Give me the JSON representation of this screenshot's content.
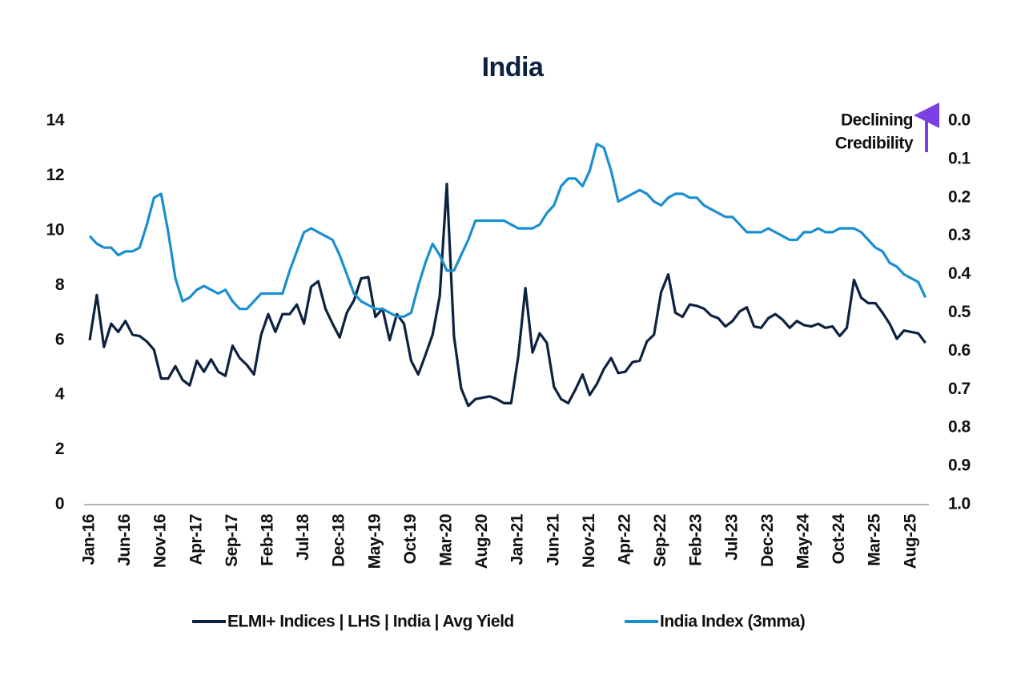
{
  "chart_data": {
    "type": "line",
    "title": "India",
    "annotation": [
      "Declining",
      "Credibility"
    ],
    "categories": [
      "Jan-16",
      null,
      null,
      null,
      null,
      "Jun-16",
      null,
      null,
      null,
      null,
      "Nov-16",
      null,
      null,
      null,
      null,
      "Apr-17",
      null,
      null,
      null,
      null,
      "Sep-17",
      null,
      null,
      null,
      null,
      "Feb-18",
      null,
      null,
      null,
      null,
      "Jul-18",
      null,
      null,
      null,
      null,
      "Dec-18",
      null,
      null,
      null,
      null,
      "May-19",
      null,
      null,
      null,
      null,
      "Oct-19",
      null,
      null,
      null,
      null,
      "Mar-20",
      null,
      null,
      null,
      null,
      "Aug-20",
      null,
      null,
      null,
      null,
      "Jan-21",
      null,
      null,
      null,
      null,
      "Jun-21",
      null,
      null,
      null,
      null,
      "Nov-21",
      null,
      null,
      null,
      null,
      "Apr-22",
      null,
      null,
      null,
      null,
      "Sep-22",
      null,
      null,
      null,
      null,
      "Feb-23",
      null,
      null,
      null,
      null,
      "Jul-23",
      null,
      null,
      null,
      null,
      "Dec-23",
      null,
      null,
      null,
      null,
      "May-24",
      null,
      null,
      null,
      null,
      "Oct-24",
      null,
      null,
      null,
      null,
      "Mar-25",
      null,
      null,
      null,
      null,
      "Aug-25",
      null,
      null
    ],
    "series": [
      {
        "name": "ELMI+ Indices | LHS | India | Avg Yield",
        "color": "#0d2240",
        "axis": "y",
        "values": [
          6.0,
          7.65,
          5.75,
          6.6,
          6.3,
          6.7,
          6.2,
          6.15,
          5.95,
          5.65,
          4.6,
          4.6,
          5.05,
          4.55,
          4.35,
          5.25,
          4.85,
          5.3,
          4.85,
          4.7,
          5.8,
          5.35,
          5.1,
          4.75,
          6.2,
          6.95,
          6.3,
          6.95,
          6.95,
          7.3,
          6.6,
          7.95,
          8.15,
          7.15,
          6.6,
          6.1,
          7.0,
          7.45,
          8.25,
          8.3,
          6.85,
          7.15,
          6.0,
          6.95,
          6.6,
          5.25,
          4.75,
          5.45,
          6.2,
          7.6,
          11.7,
          6.15,
          4.25,
          3.6,
          3.85,
          3.9,
          3.95,
          3.85,
          3.7,
          3.7,
          5.4,
          7.9,
          5.55,
          6.25,
          5.9,
          4.3,
          3.85,
          3.7,
          4.2,
          4.75,
          4.0,
          4.4,
          4.95,
          5.35,
          4.8,
          4.85,
          5.2,
          5.25,
          5.95,
          6.2,
          7.75,
          8.4,
          7.0,
          6.85,
          7.3,
          7.25,
          7.15,
          6.9,
          6.8,
          6.5,
          6.7,
          7.05,
          7.2,
          6.5,
          6.45,
          6.8,
          6.95,
          6.75,
          6.45,
          6.7,
          6.55,
          6.5,
          6.6,
          6.45,
          6.5,
          6.15,
          6.45,
          8.2,
          7.55,
          7.35,
          7.35,
          7.0,
          6.6,
          6.05,
          6.35,
          6.3,
          6.25,
          5.9
        ]
      },
      {
        "name": "India Index (3mma)",
        "color": "#1a8fd0",
        "axis": "y2",
        "values": [
          0.3,
          0.32,
          0.33,
          0.33,
          0.35,
          0.34,
          0.34,
          0.33,
          0.27,
          0.2,
          0.19,
          0.29,
          0.41,
          0.47,
          0.46,
          0.44,
          0.43,
          0.44,
          0.45,
          0.44,
          0.47,
          0.49,
          0.49,
          0.47,
          0.45,
          0.45,
          0.45,
          0.45,
          0.39,
          0.34,
          0.29,
          0.28,
          0.29,
          0.3,
          0.31,
          0.35,
          0.4,
          0.45,
          0.47,
          0.48,
          0.49,
          0.49,
          0.5,
          0.51,
          0.51,
          0.5,
          0.43,
          0.37,
          0.32,
          0.35,
          0.39,
          0.39,
          0.35,
          0.31,
          0.26,
          0.26,
          0.26,
          0.26,
          0.26,
          0.27,
          0.28,
          0.28,
          0.28,
          0.27,
          0.24,
          0.22,
          0.17,
          0.15,
          0.15,
          0.17,
          0.13,
          0.06,
          0.07,
          0.13,
          0.21,
          0.2,
          0.19,
          0.18,
          0.19,
          0.21,
          0.22,
          0.2,
          0.19,
          0.19,
          0.2,
          0.2,
          0.22,
          0.23,
          0.24,
          0.25,
          0.25,
          0.27,
          0.29,
          0.29,
          0.29,
          0.28,
          0.29,
          0.3,
          0.31,
          0.31,
          0.29,
          0.29,
          0.28,
          0.29,
          0.29,
          0.28,
          0.28,
          0.28,
          0.29,
          0.31,
          0.33,
          0.34,
          0.37,
          0.38,
          0.4,
          0.41,
          0.42,
          0.46
        ]
      }
    ],
    "ylim": [
      0,
      14
    ],
    "yticks": [
      0,
      2,
      4,
      6,
      8,
      10,
      12,
      14
    ],
    "y2lim": [
      1,
      0
    ],
    "y2ticks": [
      {
        "value": 0,
        "label": "0.0"
      },
      0.1,
      0.2,
      0.3,
      0.4,
      0.5,
      0.6,
      0.7,
      0.8,
      0.9,
      {
        "value": 1,
        "label": "1.0"
      }
    ],
    "grid": false
  }
}
